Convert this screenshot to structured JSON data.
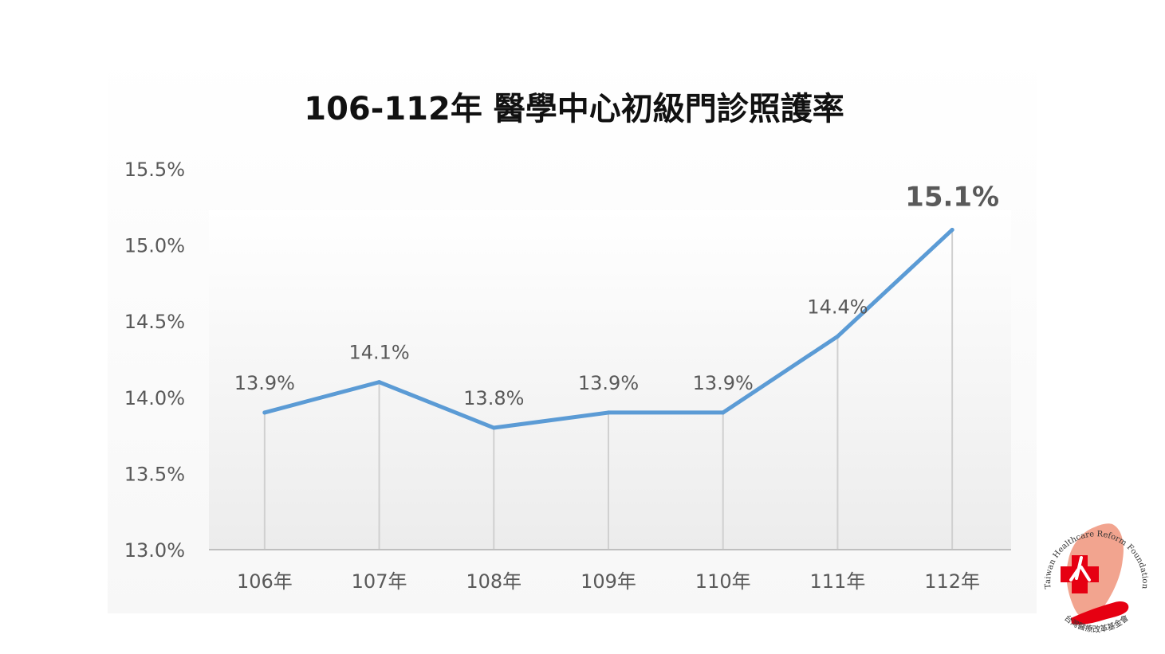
{
  "chart_data": {
    "type": "line",
    "title": "106-112年  醫學中心初級門診照護率",
    "xlabel": "",
    "ylabel": "",
    "categories": [
      "106年",
      "107年",
      "108年",
      "109年",
      "110年",
      "111年",
      "112年"
    ],
    "values": [
      13.9,
      14.1,
      13.8,
      13.9,
      13.9,
      14.4,
      15.1
    ],
    "data_labels": [
      "13.9%",
      "14.1%",
      "13.8%",
      "13.9%",
      "13.9%",
      "14.4%",
      "15.1%"
    ],
    "highlight_index": 6,
    "ylim": [
      13.0,
      15.5
    ],
    "y_ticks": [
      13.0,
      13.5,
      14.0,
      14.5,
      15.0,
      15.5
    ],
    "y_tick_labels": [
      "13.0%",
      "13.5%",
      "14.0%",
      "14.5%",
      "15.0%",
      "15.5%"
    ],
    "drop_lines": true,
    "grid": false,
    "colors": {
      "line": "#5b9bd5",
      "highlight_label": "#ff0000",
      "drop_line": "#d0d0d0",
      "axis": "#bfbfbf",
      "tick_text": "#595959"
    }
  },
  "logo": {
    "text_top": "Taiwan Healthcare Reform Foundation",
    "text_bottom": "台灣醫療改革基金會",
    "colors": {
      "map": "#f2a48f",
      "cross": "#e60012",
      "hand": "#e60012"
    }
  }
}
